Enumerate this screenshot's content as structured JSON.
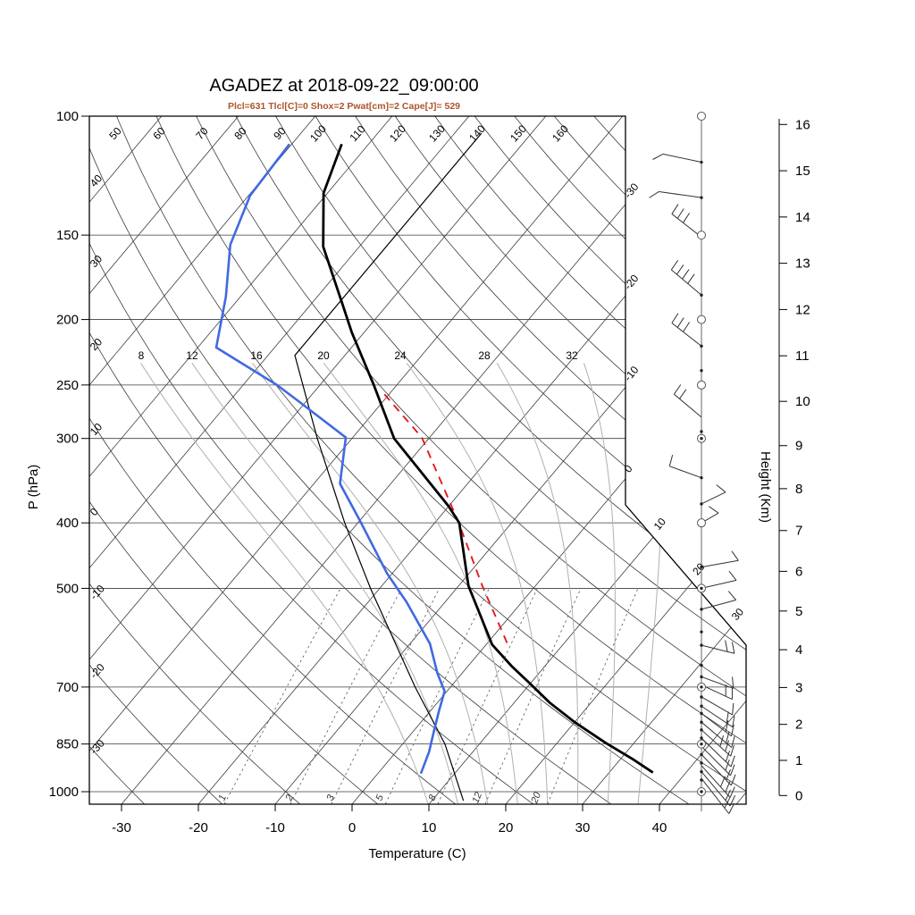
{
  "header": {
    "title": "AGADEZ at 2018-09-22_09:00:00",
    "subtitle": "Plcl=631 Tlcl[C]=0 Shox=2 Pwat[cm]=2 Cape[J]= 529",
    "subtitle_color": "#ad5429"
  },
  "axes": {
    "xlabel": "Temperature (C)",
    "ylabel_left": "P (hPa)",
    "ylabel_right": "Height (Km)"
  },
  "colors": {
    "grid": "#3c3c3c",
    "moist_adiabat": "#b0b0b0",
    "mixing_ratio": "#555555",
    "outline": "#000000",
    "temperature": "#000000",
    "dewpoint": "#4169e1",
    "parcel": "#e31a1c",
    "std_atmosphere": "#000000",
    "wind": "#333333"
  },
  "chart_data": {
    "type": "line",
    "subtype": "skewt-log-p-sounding",
    "station": "AGADEZ",
    "timestamp": "2018-09-22_09:00:00",
    "indices": {
      "Plcl": 631,
      "Tlcl_C": 0,
      "Shox": 2,
      "Pwat_cm": 2,
      "Cape_J": 529
    },
    "pressure_ticks": [
      100,
      150,
      200,
      250,
      300,
      400,
      500,
      700,
      850,
      1000
    ],
    "temp_ticks": [
      -30,
      -20,
      -10,
      0,
      10,
      20,
      30,
      40
    ],
    "height_ticks_km": [
      0,
      1,
      2,
      3,
      4,
      5,
      6,
      7,
      8,
      9,
      10,
      11,
      12,
      13,
      14,
      15,
      16
    ],
    "isotherm_labels_right": [
      -30,
      -20,
      -10,
      0
    ],
    "isotherm_labels_diag": [
      10,
      20,
      30
    ],
    "dry_adiabat_top_labels": [
      50,
      60,
      70,
      80,
      90,
      100,
      110,
      120,
      130,
      140,
      150,
      160
    ],
    "dry_adiabat_left_labels": [
      40,
      30,
      20,
      10,
      0,
      -10,
      -20,
      -30
    ],
    "dry_adiabat_range": {
      "start": -30,
      "end": 170,
      "step": 10
    },
    "isotherm_range": {
      "start": -110,
      "end": 50,
      "step": 10
    },
    "moist_adiabat_labels": [
      8,
      12,
      16,
      20,
      24,
      28,
      32
    ],
    "moist_adiabat_values": [
      8,
      12,
      16,
      20,
      24,
      28,
      32,
      36
    ],
    "mixing_ratio_labels": [
      1,
      2,
      3,
      5,
      8,
      12,
      20
    ],
    "temperature_profile": [
      [
        110,
        -73.5
      ],
      [
        130,
        -70.5
      ],
      [
        156,
        -64.7
      ],
      [
        189,
        -56.1
      ],
      [
        209,
        -51.6
      ],
      [
        250,
        -43.0
      ],
      [
        300,
        -34.5
      ],
      [
        378,
        -20.0
      ],
      [
        400,
        -16.8
      ],
      [
        496,
        -8.7
      ],
      [
        534,
        -5.2
      ],
      [
        606,
        0.8
      ],
      [
        652,
        5.7
      ],
      [
        692,
        10.0
      ],
      [
        738,
        14.6
      ],
      [
        789,
        20.0
      ],
      [
        845,
        26.1
      ],
      [
        896,
        31.7
      ],
      [
        937,
        35.7
      ]
    ],
    "dewpoint_profile": [
      [
        110,
        -80.3
      ],
      [
        131,
        -79.8
      ],
      [
        155,
        -77.0
      ],
      [
        185,
        -71.9
      ],
      [
        220,
        -67.6
      ],
      [
        250,
        -55.6
      ],
      [
        263,
        -51.4
      ],
      [
        299,
        -40.9
      ],
      [
        350,
        -36.6
      ],
      [
        396,
        -30.1
      ],
      [
        475,
        -20.7
      ],
      [
        524,
        -15.0
      ],
      [
        604,
        -7.4
      ],
      [
        668,
        -3.2
      ],
      [
        710,
        -0.3
      ],
      [
        759,
        1.1
      ],
      [
        818,
        2.8
      ],
      [
        873,
        4.3
      ],
      [
        940,
        5.6
      ]
    ],
    "parcel_profile": [
      [
        258,
        -40.6
      ],
      [
        299,
        -31.0
      ],
      [
        398,
        -17.1
      ],
      [
        496,
        -6.9
      ],
      [
        613,
        3.4
      ]
    ],
    "std_atmosphere_profile": [
      [
        1031,
        14.1
      ],
      [
        850,
        5.5
      ],
      [
        700,
        -4.6
      ],
      [
        500,
        -21.2
      ],
      [
        400,
        -31.7
      ],
      [
        300,
        -44.5
      ],
      [
        226,
        -56.5
      ],
      [
        106,
        -56.5
      ]
    ],
    "wind": {
      "circle_levels": [
        100,
        150,
        200,
        250,
        400
      ],
      "circled_dot_levels": [
        300,
        500,
        700,
        850,
        1000
      ],
      "dot_levels": [
        117,
        132,
        184,
        219,
        238,
        293,
        343,
        375,
        465,
        537,
        580,
        607,
        650,
        676,
        724,
        747,
        766,
        789,
        810,
        833,
        857,
        881,
        907,
        934,
        961
      ],
      "barbs": [
        [
          117,
          168,
          44,
          1,
          1
        ],
        [
          132,
          172,
          48,
          1,
          1
        ],
        [
          151,
          142,
          42,
          3,
          0
        ],
        [
          184,
          140,
          44,
          4,
          0
        ],
        [
          219,
          142,
          42,
          3,
          0
        ],
        [
          279,
          140,
          40,
          2,
          0
        ],
        [
          343,
          160,
          38,
          1,
          0
        ],
        [
          375,
          26,
          30,
          1,
          0
        ],
        [
          400,
          30,
          22,
          1,
          0
        ],
        [
          465,
          10,
          42,
          1,
          0
        ],
        [
          500,
          13,
          40,
          1,
          0
        ],
        [
          537,
          15,
          40,
          1,
          0
        ],
        [
          607,
          -14,
          38,
          2,
          0
        ],
        [
          676,
          -20,
          38,
          1,
          0
        ],
        [
          695,
          -25,
          38,
          2,
          0
        ],
        [
          724,
          -30,
          40,
          1,
          0
        ],
        [
          747,
          -34,
          42,
          2,
          0
        ],
        [
          766,
          -37,
          42,
          2,
          0
        ],
        [
          789,
          -40,
          44,
          2,
          0
        ],
        [
          810,
          -42,
          44,
          3,
          0
        ],
        [
          833,
          -44,
          46,
          2,
          0
        ],
        [
          857,
          -45,
          46,
          2,
          0
        ],
        [
          881,
          -46,
          48,
          2,
          0
        ],
        [
          915,
          -48,
          48,
          3,
          0
        ],
        [
          934,
          -50,
          50,
          2,
          0
        ],
        [
          956,
          -52,
          50,
          2,
          0
        ]
      ]
    }
  }
}
